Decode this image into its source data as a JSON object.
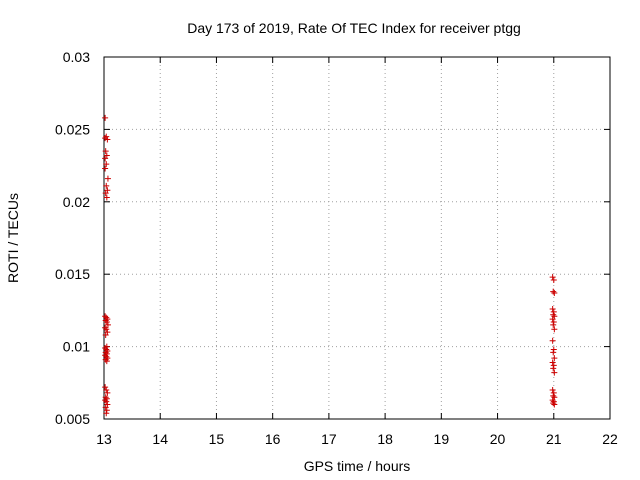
{
  "chart_data": {
    "type": "scatter",
    "title": "Day 173 of 2019, Rate Of TEC Index for receiver ptgg",
    "xlabel": "GPS time / hours",
    "ylabel": "ROTI / TECUs",
    "xlim": [
      13,
      22
    ],
    "ylim": [
      0.005,
      0.03
    ],
    "x_ticks": [
      13,
      14,
      15,
      16,
      17,
      18,
      19,
      20,
      21,
      22
    ],
    "y_ticks": [
      0.005,
      0.01,
      0.015,
      0.02,
      0.025,
      0.03
    ],
    "x_tick_labels": [
      "13",
      "14",
      "15",
      "16",
      "17",
      "18",
      "19",
      "20",
      "21",
      "22"
    ],
    "y_tick_labels": [
      "0.005",
      "0.01",
      "0.015",
      "0.02",
      "0.025",
      "0.03"
    ],
    "grid": true,
    "marker": "+",
    "color": "#cc0000",
    "series": [
      {
        "name": "ROTI",
        "x": [
          13.02,
          13.04,
          13.02,
          13.06,
          13.03,
          13.05,
          13.02,
          13.07,
          13.04,
          13.06,
          13.03,
          13.05,
          13.02,
          13.04,
          13.02,
          13.04,
          13.06,
          13.03,
          13.05,
          13.07,
          13.02,
          13.04,
          13.06,
          13.03,
          13.05,
          13.02,
          13.04,
          13.06,
          13.03,
          13.05,
          13.02,
          13.04,
          13.06,
          13.03,
          13.05,
          13.02,
          13.04,
          13.06,
          13.03,
          13.05,
          13.02,
          13.04,
          13.06,
          13.03,
          13.05,
          13.04,
          20.98,
          21.0,
          20.99,
          21.01,
          20.98,
          21.0,
          20.99,
          21.01,
          20.98,
          21.0,
          20.99,
          21.01,
          20.98,
          21.0,
          20.99,
          21.01,
          20.98,
          21.0,
          20.99,
          21.01,
          20.98,
          21.0,
          20.99,
          21.01,
          20.98,
          21.0,
          20.99,
          21.01
        ],
        "y": [
          0.0258,
          0.0245,
          0.0244,
          0.0243,
          0.0235,
          0.0232,
          0.023,
          0.0216,
          0.0211,
          0.0208,
          0.0206,
          0.0203,
          0.0223,
          0.0226,
          0.0121,
          0.012,
          0.0119,
          0.0118,
          0.0117,
          0.0115,
          0.0113,
          0.0112,
          0.011,
          0.0108,
          0.01,
          0.0099,
          0.0098,
          0.0097,
          0.0096,
          0.0095,
          0.0094,
          0.0093,
          0.0092,
          0.0091,
          0.009,
          0.0072,
          0.007,
          0.0068,
          0.0065,
          0.0064,
          0.0063,
          0.0062,
          0.006,
          0.0058,
          0.0056,
          0.0054,
          0.0148,
          0.0146,
          0.0138,
          0.0137,
          0.0126,
          0.0124,
          0.0122,
          0.0121,
          0.0119,
          0.0117,
          0.0115,
          0.0112,
          0.0104,
          0.0098,
          0.0096,
          0.0092,
          0.0089,
          0.0087,
          0.0085,
          0.0082,
          0.007,
          0.0068,
          0.0066,
          0.0065,
          0.0063,
          0.0062,
          0.0061,
          0.006
        ]
      }
    ]
  }
}
